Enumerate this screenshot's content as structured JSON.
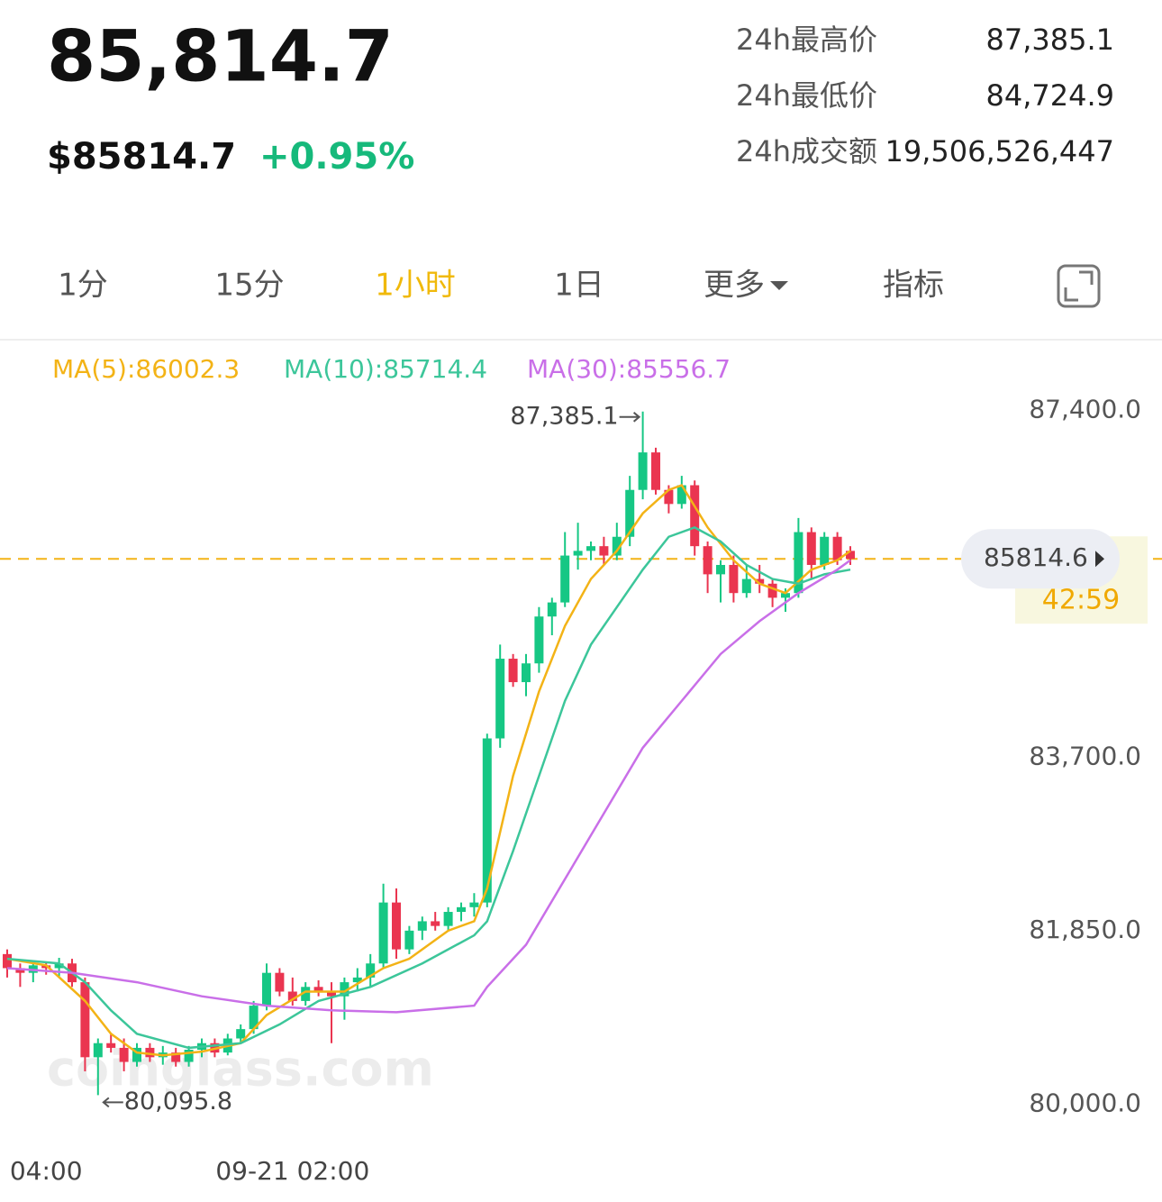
{
  "header": {
    "price": "85,814.7",
    "usd_price": "$85814.7",
    "change": "+0.95%",
    "stats": [
      {
        "label": "24h最高价",
        "value": "87,385.1"
      },
      {
        "label": "24h最低价",
        "value": "84,724.9"
      },
      {
        "label": "24h成交额",
        "value": "19,506,526,447"
      }
    ]
  },
  "tabs": {
    "items": [
      "1分",
      "15分",
      "1小时",
      "1日",
      "更多",
      "指标"
    ],
    "active": 2
  },
  "chart_data": {
    "type": "candlestick",
    "watermark": "coinglass.com",
    "up_color": "#16c784",
    "down_color": "#ea3550",
    "categories": [
      null,
      null,
      null,
      "04:00",
      null,
      null,
      null,
      null,
      null,
      null,
      null,
      null,
      null,
      null,
      null,
      null,
      null,
      null,
      null,
      null,
      null,
      null,
      "09-21 02:00",
      null,
      null,
      null,
      null,
      null,
      null,
      null,
      null,
      null,
      null,
      null,
      null,
      null,
      null,
      null,
      null,
      null,
      null,
      null,
      null,
      null,
      null,
      null,
      null,
      null,
      null,
      null,
      null,
      null,
      null,
      null,
      null,
      null,
      null,
      null,
      null,
      null,
      null,
      null,
      null,
      null,
      null,
      null
    ],
    "ohlc": [
      [
        81600,
        81650,
        81350,
        81450
      ],
      [
        81450,
        81500,
        81250,
        81400
      ],
      [
        81400,
        81520,
        81300,
        81480
      ],
      [
        81480,
        81520,
        81380,
        81450
      ],
      [
        81450,
        81560,
        81350,
        81500
      ],
      [
        81500,
        81550,
        81250,
        81300
      ],
      [
        81300,
        81350,
        80350,
        80500
      ],
      [
        80500,
        80700,
        80095.8,
        80650
      ],
      [
        80650,
        80750,
        80550,
        80600
      ],
      [
        80600,
        80700,
        80350,
        80450
      ],
      [
        80450,
        80650,
        80400,
        80600
      ],
      [
        80600,
        80650,
        80450,
        80500
      ],
      [
        80500,
        80620,
        80420,
        80550
      ],
      [
        80550,
        80600,
        80400,
        80450
      ],
      [
        80450,
        80620,
        80400,
        80580
      ],
      [
        80580,
        80700,
        80500,
        80650
      ],
      [
        80650,
        80700,
        80500,
        80550
      ],
      [
        80550,
        80750,
        80520,
        80700
      ],
      [
        80700,
        80850,
        80650,
        80800
      ],
      [
        80800,
        81100,
        80750,
        81050
      ],
      [
        81050,
        81500,
        81000,
        81400
      ],
      [
        81400,
        81450,
        81150,
        81200
      ],
      [
        81200,
        81350,
        81050,
        81100
      ],
      [
        81100,
        81300,
        81050,
        81250
      ],
      [
        81250,
        81320,
        81150,
        81200
      ],
      [
        81200,
        81300,
        80650,
        81150
      ],
      [
        81150,
        81350,
        80900,
        81300
      ],
      [
        81300,
        81450,
        81200,
        81350
      ],
      [
        81350,
        81600,
        81250,
        81500
      ],
      [
        81500,
        82350,
        81450,
        82150
      ],
      [
        82150,
        82300,
        81550,
        81650
      ],
      [
        81650,
        81900,
        81600,
        81850
      ],
      [
        81850,
        82000,
        81750,
        81950
      ],
      [
        81950,
        82050,
        81850,
        81900
      ],
      [
        81900,
        82100,
        81850,
        82050
      ],
      [
        82050,
        82150,
        81950,
        82100
      ],
      [
        82100,
        82250,
        82000,
        82150
      ],
      [
        82150,
        83950,
        82100,
        83900
      ],
      [
        83900,
        84900,
        83800,
        84750
      ],
      [
        84750,
        84800,
        84450,
        84500
      ],
      [
        84500,
        84800,
        84350,
        84700
      ],
      [
        84700,
        85300,
        84600,
        85200
      ],
      [
        85200,
        85400,
        85000,
        85350
      ],
      [
        85350,
        86100,
        85300,
        85850
      ],
      [
        85850,
        86200,
        85700,
        85900
      ],
      [
        85900,
        86000,
        85800,
        85950
      ],
      [
        85950,
        86050,
        85750,
        85850
      ],
      [
        85850,
        86200,
        85800,
        86050
      ],
      [
        86050,
        86700,
        85950,
        86550
      ],
      [
        86550,
        87385.1,
        86450,
        86950
      ],
      [
        86950,
        87000,
        86500,
        86550
      ],
      [
        86550,
        86600,
        86300,
        86400
      ],
      [
        86400,
        86700,
        86350,
        86600
      ],
      [
        86600,
        86650,
        85850,
        85950
      ],
      [
        85950,
        86000,
        85450,
        85650
      ],
      [
        85650,
        85800,
        85350,
        85750
      ],
      [
        85750,
        85850,
        85350,
        85450
      ],
      [
        85450,
        85750,
        85400,
        85600
      ],
      [
        85600,
        85750,
        85450,
        85550
      ],
      [
        85550,
        85600,
        85300,
        85400
      ],
      [
        85400,
        85500,
        85250,
        85450
      ],
      [
        85450,
        86250,
        85400,
        86100
      ],
      [
        86100,
        86150,
        85600,
        85750
      ],
      [
        85750,
        86100,
        85700,
        86050
      ],
      [
        86050,
        86100,
        85750,
        85800
      ],
      [
        85900,
        85950,
        85750,
        85814.6
      ]
    ],
    "high_label": "87,385.1",
    "low_label": "80,095.8",
    "indicators": [
      {
        "label": "MA(5):86002.3",
        "color": "#f3b316",
        "x": [
          0,
          3,
          6,
          8,
          10,
          12,
          15,
          18,
          20,
          23,
          26,
          29,
          31,
          34,
          36,
          37,
          39,
          41,
          43,
          45,
          47,
          49,
          51,
          52,
          54,
          56,
          58,
          60,
          62,
          64,
          65
        ],
        "values": [
          81550,
          81480,
          81100,
          80750,
          80550,
          80520,
          80560,
          80650,
          80950,
          81200,
          81200,
          81450,
          81550,
          81850,
          81950,
          82300,
          83500,
          84400,
          85100,
          85600,
          85900,
          86300,
          86550,
          86600,
          86150,
          85800,
          85550,
          85450,
          85700,
          85800,
          85900
        ]
      },
      {
        "label": "MA(10):85714.4",
        "color": "#3cc69a",
        "x": [
          0,
          4,
          6,
          8,
          10,
          14,
          18,
          21,
          24,
          28,
          32,
          36,
          37,
          39,
          41,
          43,
          45,
          47,
          49,
          51,
          53,
          55,
          57,
          59,
          61,
          63,
          65
        ],
        "values": [
          81550,
          81500,
          81300,
          81000,
          80750,
          80600,
          80650,
          80850,
          81100,
          81250,
          81500,
          81800,
          81950,
          82700,
          83500,
          84300,
          84900,
          85300,
          85700,
          86050,
          86150,
          86000,
          85750,
          85600,
          85550,
          85650,
          85700
        ]
      },
      {
        "label": "MA(30):85556.7",
        "color": "#c96fe8",
        "x": [
          0,
          5,
          10,
          15,
          20,
          25,
          30,
          36,
          37,
          40,
          43,
          46,
          49,
          52,
          55,
          58,
          61,
          64,
          65
        ],
        "values": [
          81450,
          81400,
          81300,
          81150,
          81050,
          81000,
          80980,
          81050,
          81250,
          81700,
          82400,
          83100,
          83800,
          84300,
          84800,
          85150,
          85450,
          85700,
          85800
        ]
      }
    ],
    "last_price": 85814.6,
    "countdown": "42:59",
    "ylim": [
      79600,
      88200
    ],
    "yticks": [
      {
        "value": 80000,
        "label": "80,000.0"
      },
      {
        "value": 81850,
        "label": "81,850.0"
      },
      {
        "value": 83700,
        "label": "83,700.0"
      },
      {
        "value": 87400,
        "label": "87,400.0"
      }
    ]
  }
}
